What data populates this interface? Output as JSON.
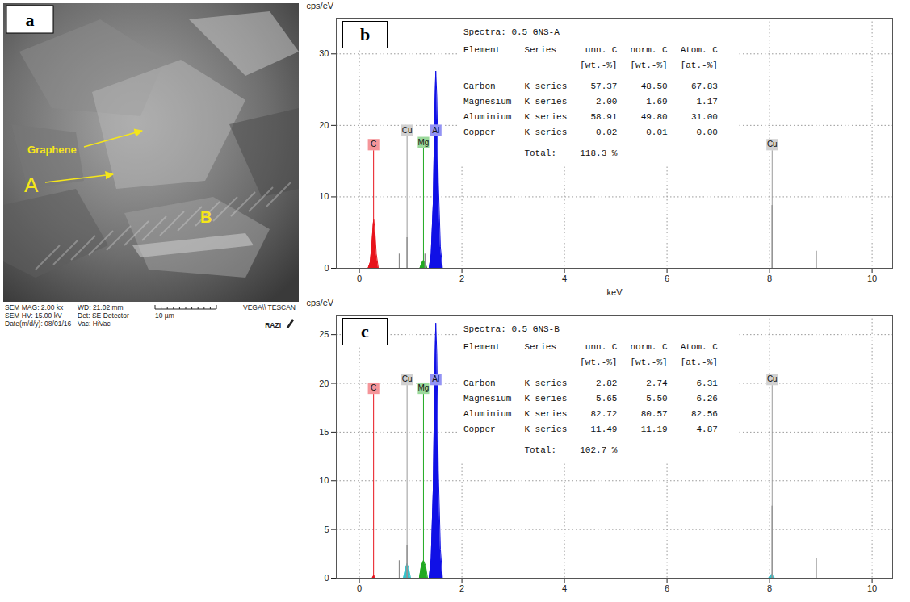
{
  "panel_a": {
    "letter": "a",
    "annotations": [
      "Graphene",
      "A",
      "B"
    ],
    "info": [
      "SEM MAG: 2.00 kx",
      "WD: 21.02 mm",
      "SEM HV: 15.00 kV",
      "Det: SE Detector",
      "Date(m/d/y): 08/01/16",
      "Vac: HiVac"
    ],
    "scale_bar": "10 µm",
    "instrument": "VEGA\\\\ TESCAN",
    "logo": "RAZI"
  },
  "chart_data": [
    {
      "type": "spectrum",
      "letter": "b",
      "y_label": "cps/eV",
      "x_label": "keV",
      "xlim": [
        -0.45,
        10.4
      ],
      "xticks": [
        0,
        2,
        4,
        6,
        8,
        10
      ],
      "ylim": [
        0,
        35
      ],
      "yticks": [
        0,
        10,
        20,
        30
      ],
      "grid": true,
      "series": [
        {
          "type": "area",
          "color": "#e8141c",
          "x": [
            0.17,
            0.21,
            0.24,
            0.27,
            0.28,
            0.3,
            0.33,
            0.37
          ],
          "values": [
            0,
            0.8,
            3,
            6.2,
            6.8,
            5.5,
            2,
            0
          ]
        },
        {
          "type": "area",
          "color": "#22aa22",
          "x": [
            1.18,
            1.22,
            1.25,
            1.28,
            1.32
          ],
          "values": [
            0,
            0.8,
            1.1,
            0.8,
            0
          ]
        },
        {
          "type": "area",
          "color": "#1010e6",
          "x": [
            1.36,
            1.4,
            1.44,
            1.47,
            1.49,
            1.51,
            1.54,
            1.58,
            1.62
          ],
          "values": [
            0,
            2,
            9,
            22,
            27.6,
            24,
            12,
            3,
            0
          ]
        },
        {
          "type": "rule",
          "color": "#8c8c8c",
          "x": [
            0.78,
            0.93,
            1.28,
            8.05,
            8.91
          ],
          "values": [
            2,
            4.3,
            2,
            8.8,
            2.4
          ]
        }
      ],
      "markers": [
        {
          "label": "C",
          "x": 0.277,
          "height": 17.3,
          "color": "#e8141c"
        },
        {
          "label": "Cu",
          "x": 0.93,
          "height": 19.3,
          "color": "#9a9a9a"
        },
        {
          "label": "Mg",
          "x": 1.25,
          "height": 17.6,
          "color": "#22aa22"
        },
        {
          "label": "Al",
          "x": 1.49,
          "height": 19.3,
          "color": "#1010e6"
        },
        {
          "label": "Cu",
          "x": 8.05,
          "height": 17.3,
          "color": "#9a9a9a"
        }
      ],
      "table": {
        "title": "Spectra: 0.5 GNS-A",
        "columns": [
          "Element",
          "Series",
          "unn. C",
          "norm. C",
          "Atom. C"
        ],
        "units": [
          null,
          null,
          "[wt.-%]",
          "[wt.-%]",
          "[at.-%]"
        ],
        "rows": [
          [
            "Carbon",
            "K series",
            "57.37",
            "48.50",
            "67.83"
          ],
          [
            "Magnesium",
            "K series",
            "2.00",
            "1.69",
            "1.17"
          ],
          [
            "Aluminium",
            "K series",
            "58.91",
            "49.80",
            "31.00"
          ],
          [
            "Copper",
            "K series",
            "0.02",
            "0.01",
            "0.00"
          ]
        ],
        "total_label": "Total:",
        "total": "118.3 %"
      }
    },
    {
      "type": "spectrum",
      "letter": "c",
      "y_label": "cps/eV",
      "x_label": null,
      "xlim": [
        -0.45,
        10.4
      ],
      "xticks": [
        0,
        2,
        4,
        6,
        8,
        10
      ],
      "ylim": [
        0,
        27
      ],
      "yticks": [
        0,
        5,
        10,
        15,
        20,
        25
      ],
      "grid": true,
      "series": [
        {
          "type": "area",
          "color": "#e8141c",
          "x": [
            0.25,
            0.28,
            0.31
          ],
          "values": [
            0,
            0.3,
            0
          ]
        },
        {
          "type": "area",
          "color": "#33c4cc",
          "x": [
            0.86,
            0.9,
            0.93,
            0.96,
            1.0
          ],
          "values": [
            0,
            1,
            1.5,
            1,
            0
          ]
        },
        {
          "type": "area",
          "color": "#33c4cc",
          "x": [
            7.98,
            8.04,
            8.1
          ],
          "values": [
            0,
            0.4,
            0
          ]
        },
        {
          "type": "area",
          "color": "#22aa22",
          "x": [
            1.17,
            1.21,
            1.25,
            1.29,
            1.33
          ],
          "values": [
            0,
            1.3,
            1.8,
            1.3,
            0
          ]
        },
        {
          "type": "area",
          "color": "#1010e6",
          "x": [
            1.36,
            1.4,
            1.44,
            1.47,
            1.49,
            1.51,
            1.54,
            1.58,
            1.62
          ],
          "values": [
            0,
            2,
            9,
            21,
            26.2,
            23,
            11,
            3,
            0
          ]
        },
        {
          "type": "rule",
          "color": "#8c8c8c",
          "x": [
            0.78,
            0.93,
            8.05,
            8.91
          ],
          "values": [
            1.8,
            3.4,
            7.4,
            2
          ]
        }
      ],
      "markers": [
        {
          "label": "C",
          "x": 0.277,
          "height": 19.5,
          "color": "#e8141c"
        },
        {
          "label": "Cu",
          "x": 0.93,
          "height": 20.4,
          "color": "#9a9a9a"
        },
        {
          "label": "Mg",
          "x": 1.25,
          "height": 19.5,
          "color": "#22aa22"
        },
        {
          "label": "Al",
          "x": 1.49,
          "height": 20.4,
          "color": "#1010e6"
        },
        {
          "label": "Cu",
          "x": 8.05,
          "height": 20.4,
          "color": "#9a9a9a"
        }
      ],
      "table": {
        "title": "Spectra: 0.5 GNS-B",
        "columns": [
          "Element",
          "Series",
          "unn. C",
          "norm. C",
          "Atom. C"
        ],
        "units": [
          null,
          null,
          "[wt.-%]",
          "[wt.-%]",
          "[at.-%]"
        ],
        "rows": [
          [
            "Carbon",
            "K series",
            "2.82",
            "2.74",
            "6.31"
          ],
          [
            "Magnesium",
            "K series",
            "5.65",
            "5.50",
            "6.26"
          ],
          [
            "Aluminium",
            "K series",
            "82.72",
            "80.57",
            "82.56"
          ],
          [
            "Copper",
            "K series",
            "11.49",
            "11.19",
            "4.87"
          ]
        ],
        "total_label": "Total:",
        "total": "102.7 %"
      }
    }
  ]
}
